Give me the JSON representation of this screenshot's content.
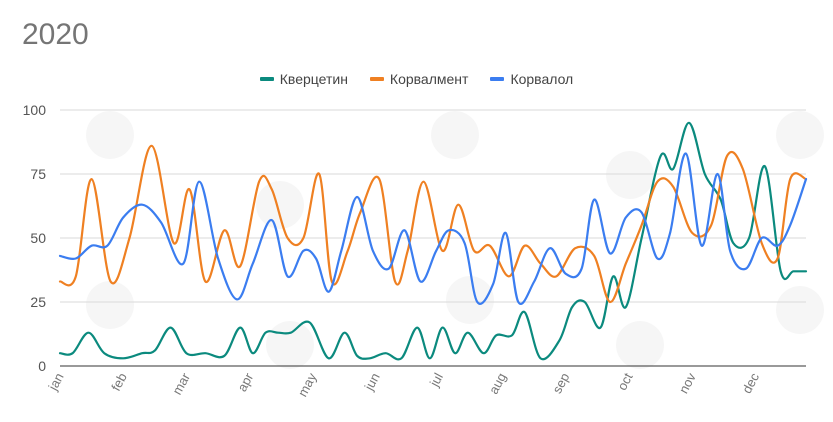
{
  "chart_data": {
    "type": "line",
    "title": "2020",
    "xlabel": "",
    "ylabel": "",
    "ylim": [
      0,
      100
    ],
    "yticks": [
      0,
      25,
      50,
      75,
      100
    ],
    "xlim": [
      0,
      11.8
    ],
    "xtick_positions": [
      0,
      1,
      2,
      3,
      4,
      5,
      6,
      7,
      8,
      9,
      10,
      11
    ],
    "xtick_labels": [
      "jan",
      "feb",
      "mar",
      "apr",
      "may",
      "jun",
      "jul",
      "aug",
      "sep",
      "oct",
      "nov",
      "dec"
    ],
    "grid": true,
    "legend_position": "top",
    "series": [
      {
        "name": "Кверцетин",
        "color": "#0b8a7e",
        "x": [
          0,
          0.2,
          0.45,
          0.7,
          1.0,
          1.3,
          1.5,
          1.75,
          2.0,
          2.3,
          2.6,
          2.85,
          3.05,
          3.25,
          3.45,
          3.65,
          3.95,
          4.25,
          4.5,
          4.7,
          4.9,
          5.15,
          5.4,
          5.65,
          5.85,
          6.05,
          6.25,
          6.45,
          6.7,
          6.9,
          7.15,
          7.35,
          7.6,
          7.9,
          8.1,
          8.3,
          8.55,
          8.75,
          8.95,
          9.2,
          9.5,
          9.7,
          9.95,
          10.2,
          10.45,
          10.65,
          10.9,
          11.15,
          11.4,
          11.6,
          11.8
        ],
        "values": [
          5,
          5,
          13,
          5,
          3,
          5,
          6,
          15,
          5,
          5,
          4,
          15,
          5,
          13,
          13,
          13,
          17,
          3,
          13,
          4,
          3,
          5,
          3,
          15,
          3,
          15,
          5,
          13,
          5,
          12,
          12,
          21,
          3,
          10,
          23,
          25,
          15,
          35,
          23,
          50,
          82,
          77,
          95,
          75,
          65,
          48,
          50,
          78,
          37,
          37,
          37
        ]
      },
      {
        "name": "Корвалмент",
        "color": "#ef8022",
        "x": [
          0,
          0.25,
          0.5,
          0.8,
          1.1,
          1.45,
          1.8,
          2.05,
          2.3,
          2.6,
          2.85,
          3.15,
          3.35,
          3.6,
          3.85,
          4.1,
          4.3,
          4.55,
          4.75,
          5.05,
          5.3,
          5.5,
          5.75,
          6.05,
          6.3,
          6.55,
          6.8,
          7.1,
          7.35,
          7.6,
          7.85,
          8.15,
          8.45,
          8.7,
          8.95,
          9.2,
          9.45,
          9.7,
          10.0,
          10.3,
          10.55,
          10.8,
          11.1,
          11.35,
          11.55,
          11.8
        ],
        "values": [
          33,
          35,
          73,
          33,
          50,
          86,
          48,
          69,
          33,
          53,
          39,
          72,
          69,
          50,
          50,
          75,
          33,
          45,
          60,
          73,
          33,
          45,
          72,
          45,
          63,
          45,
          47,
          35,
          47,
          40,
          35,
          46,
          43,
          25,
          40,
          55,
          72,
          70,
          52,
          55,
          82,
          77,
          48,
          42,
          73,
          73
        ]
      },
      {
        "name": "Корвалол",
        "color": "#3b7df0",
        "x": [
          0,
          0.25,
          0.5,
          0.75,
          1.0,
          1.3,
          1.6,
          1.95,
          2.2,
          2.5,
          2.8,
          3.05,
          3.35,
          3.6,
          3.85,
          4.05,
          4.25,
          4.45,
          4.7,
          4.95,
          5.2,
          5.45,
          5.7,
          5.95,
          6.15,
          6.4,
          6.6,
          6.85,
          7.05,
          7.25,
          7.5,
          7.75,
          8.0,
          8.25,
          8.45,
          8.7,
          8.95,
          9.2,
          9.45,
          9.65,
          9.9,
          10.15,
          10.4,
          10.6,
          10.85,
          11.1,
          11.35,
          11.55,
          11.8
        ],
        "values": [
          43,
          42,
          47,
          47,
          58,
          63,
          56,
          40,
          72,
          42,
          26,
          40,
          57,
          35,
          45,
          42,
          29,
          45,
          66,
          45,
          38,
          53,
          33,
          45,
          53,
          48,
          25,
          32,
          52,
          25,
          33,
          46,
          36,
          38,
          65,
          44,
          58,
          60,
          42,
          52,
          83,
          47,
          75,
          45,
          38,
          50,
          47,
          55,
          73
        ]
      }
    ]
  }
}
